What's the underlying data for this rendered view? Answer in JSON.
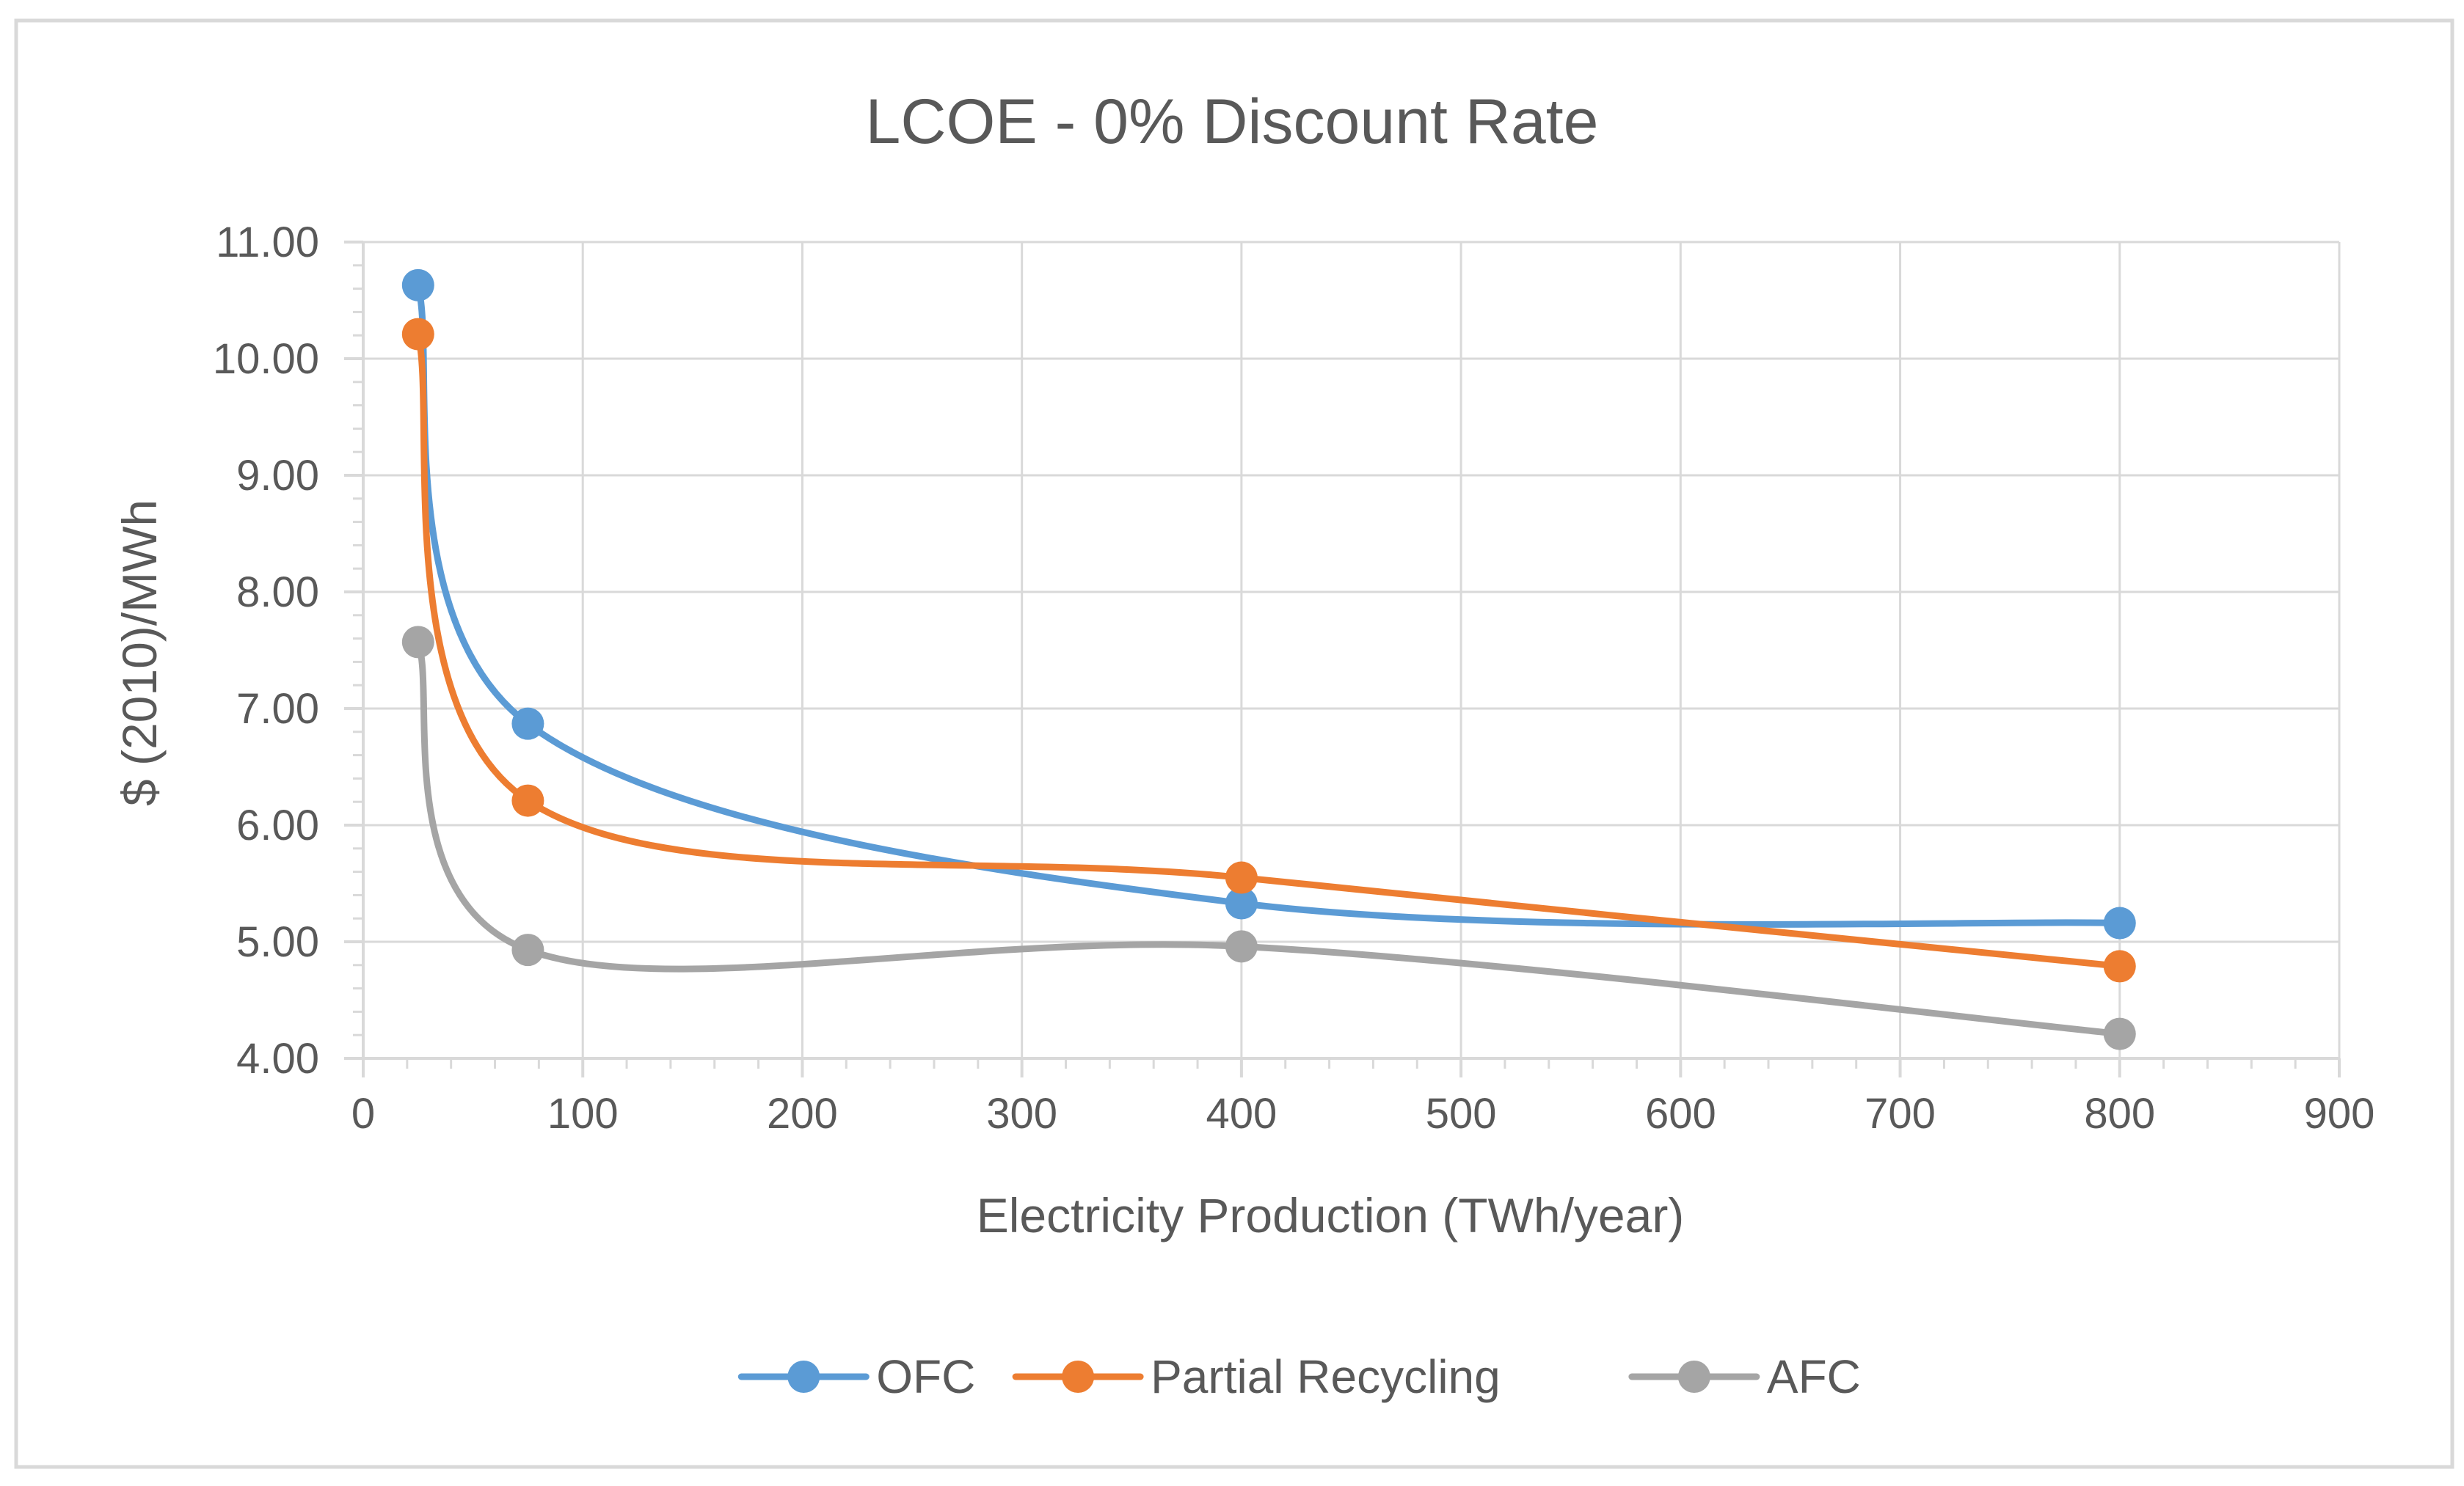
{
  "chart_data": {
    "type": "line",
    "smooth": true,
    "title": "LCOE - 0% Discount Rate",
    "xlabel": "Electricity Production (TWh/year)",
    "ylabel": "$ (2010)/MWh",
    "xlim": [
      0,
      900
    ],
    "ylim": [
      4.0,
      11.0
    ],
    "x_ticks": [
      0,
      100,
      200,
      300,
      400,
      500,
      600,
      700,
      800,
      900
    ],
    "y_ticks": [
      4.0,
      5.0,
      6.0,
      7.0,
      8.0,
      9.0,
      10.0,
      11.0
    ],
    "x_tick_labels": [
      "0",
      "100",
      "200",
      "300",
      "400",
      "500",
      "600",
      "700",
      "800",
      "900"
    ],
    "y_tick_labels": [
      "4.00",
      "5.00",
      "6.00",
      "7.00",
      "8.00",
      "9.00",
      "10.00",
      "11.00"
    ],
    "grid": true,
    "legend_position": "bottom",
    "series": [
      {
        "name": "OFC",
        "color": "#5B9BD5",
        "x": [
          25,
          75,
          400,
          800
        ],
        "y": [
          10.63,
          6.87,
          5.33,
          5.16
        ]
      },
      {
        "name": "Partial Recycling",
        "color": "#ED7D31",
        "x": [
          25,
          75,
          400,
          800
        ],
        "y": [
          10.21,
          6.21,
          5.55,
          4.79
        ]
      },
      {
        "name": "AFC",
        "color": "#A5A5A5",
        "x": [
          25,
          75,
          400,
          800
        ],
        "y": [
          7.57,
          4.93,
          4.96,
          4.21
        ]
      }
    ]
  },
  "colors": {
    "axis": "#D9D9D9",
    "grid": "#D9D9D9",
    "text": "#595959",
    "frame_border": "#D9D9D9"
  }
}
